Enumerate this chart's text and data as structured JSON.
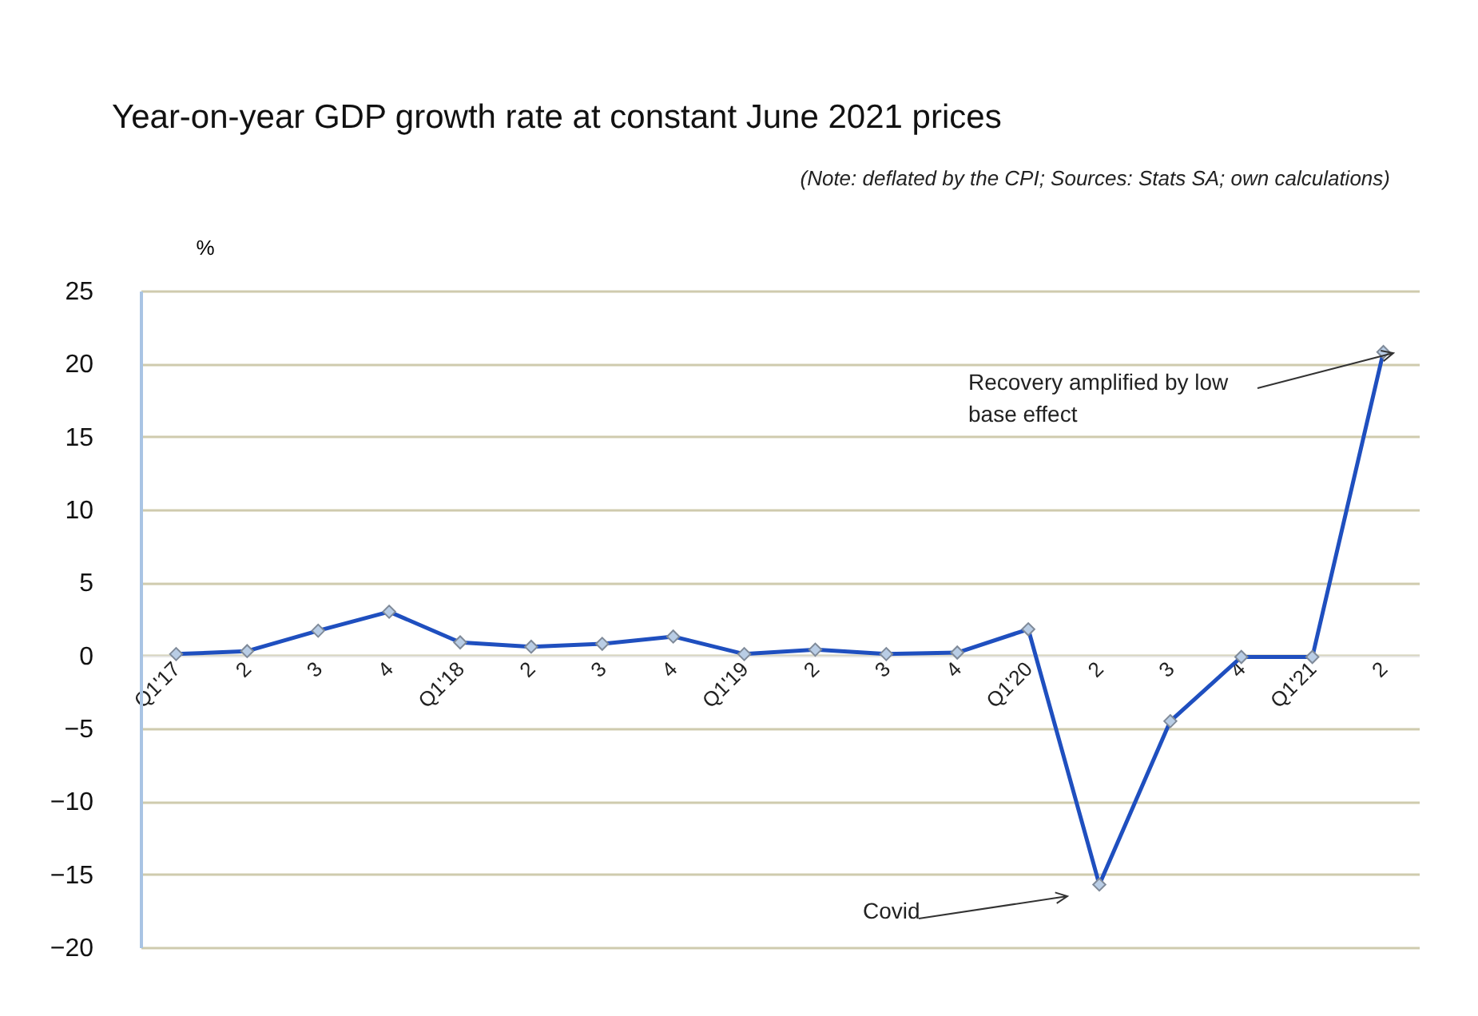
{
  "chart_data": {
    "type": "line",
    "title": "Year-on-year  GDP growth rate at constant June 2021 prices",
    "subtitle": "(Note: deflated by the CPI; Sources: Stats SA; own calculations)",
    "ylabel": "%",
    "categories": [
      "Q1'17",
      "2",
      "3",
      "4",
      "Q1'18",
      "2",
      "3",
      "4",
      "Q1'19",
      "2",
      "3",
      "4",
      "Q1'20",
      "2",
      "3",
      "4",
      "Q1'21",
      "2"
    ],
    "series": [
      {
        "color": "#1f4fbf",
        "values": [
          0.1,
          0.3,
          1.7,
          3.0,
          0.9,
          0.6,
          0.8,
          1.3,
          0.1,
          0.4,
          0.1,
          0.2,
          1.8,
          -15.7,
          -4.5,
          -0.1,
          -0.1,
          20.8
        ]
      }
    ],
    "ylim": [
      -20,
      25
    ],
    "yticks": [
      -20,
      -15,
      -10,
      -5,
      0,
      5,
      10,
      15,
      20,
      25
    ],
    "grid": "y",
    "marker": "diamond",
    "line_style": "solid",
    "annotations": [
      "Covid",
      "Recovery amplified by low base effect"
    ]
  }
}
